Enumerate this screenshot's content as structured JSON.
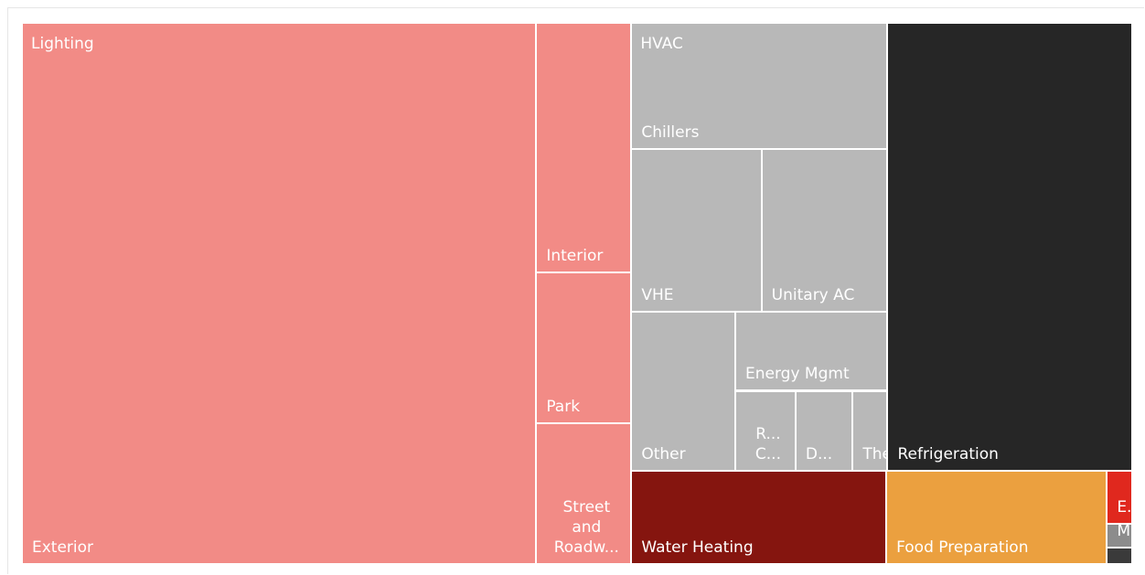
{
  "chart_data": {
    "type": "treemap",
    "groups": [
      {
        "name": "Lighting",
        "color": "#f28b86",
        "children": [
          {
            "name": "Exterior",
            "value": 329.7
          },
          {
            "name": "Interior",
            "value": 28.1
          },
          {
            "name": "Park",
            "value": 17.0
          },
          {
            "name": "Street and Roadw...",
            "value": 15.9
          }
        ]
      },
      {
        "name": "HVAC",
        "color": "#b8b8b8",
        "children": [
          {
            "name": "Chillers",
            "value": 38.2
          },
          {
            "name": "VHE",
            "value": 25.1
          },
          {
            "name": "Unitary AC",
            "value": 24.3
          },
          {
            "name": "Other",
            "value": 19.6
          },
          {
            "name": "Energy Mgmt",
            "value": 14.3
          },
          {
            "name": "R... C...",
            "value": 5.7
          },
          {
            "name": "D...",
            "value": 5.4
          },
          {
            "name": "Thermo...",
            "value": 3.3
          }
        ]
      },
      {
        "name": "Refrigeration",
        "color": "#262626",
        "value": 129.8
      },
      {
        "name": "Water Heating",
        "color": "#85150f",
        "value": 28.2
      },
      {
        "name": "Food Preparation",
        "color": "#eba03f",
        "value": 24.4
      },
      {
        "name": "E...",
        "color": "#e0281e",
        "value": 1.6
      },
      {
        "name": "M...",
        "color": "#8c8c8c",
        "value": 0.7
      },
      {
        "name": null,
        "color": "#3a3a3a",
        "value": 0.5
      }
    ]
  }
}
